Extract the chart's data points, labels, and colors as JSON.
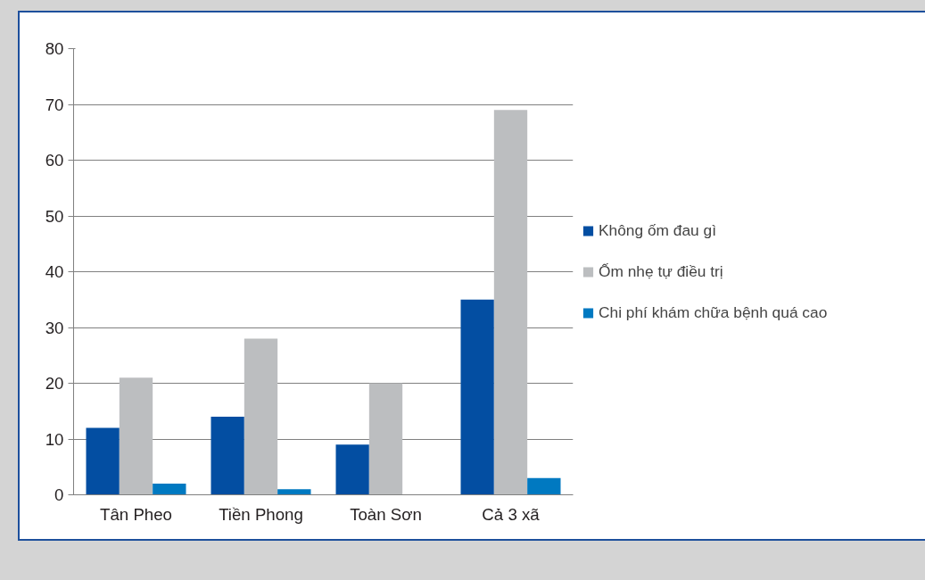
{
  "chart_data": {
    "type": "bar",
    "categories": [
      "Tân Pheo",
      "Tiền Phong",
      "Toàn Sơn",
      "Cả 3 xã"
    ],
    "series": [
      {
        "name": "Không ốm đau gì",
        "color": "#034ea2",
        "values": [
          12,
          14,
          9,
          35
        ]
      },
      {
        "name": "Ốm nhẹ tự điều trị",
        "color": "#bcbec0",
        "values": [
          21,
          28,
          20,
          69
        ]
      },
      {
        "name": "Chi phí khám chữa bệnh quá cao",
        "color": "#0079c1",
        "values": [
          2,
          1,
          0,
          3
        ]
      }
    ],
    "ylim": [
      0,
      80
    ],
    "yticks": [
      0,
      10,
      20,
      30,
      40,
      50,
      60,
      70,
      80
    ],
    "grid": "y",
    "legend": "right"
  }
}
